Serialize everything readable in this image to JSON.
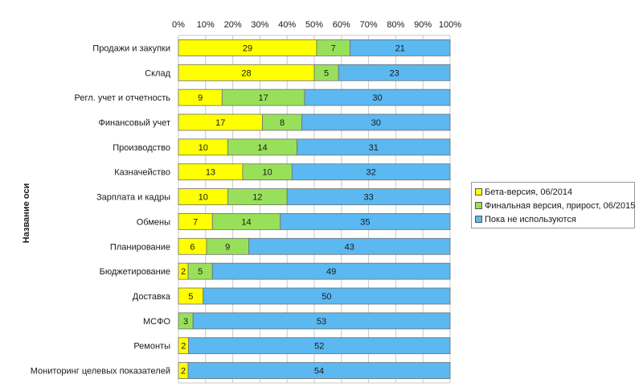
{
  "chart_data": {
    "type": "bar",
    "orientation": "horizontal",
    "stacked": "percent",
    "title": "",
    "ylabel": "Название оси",
    "xlim": [
      0,
      100
    ],
    "x_ticks": [
      "0%",
      "10%",
      "20%",
      "30%",
      "40%",
      "50%",
      "60%",
      "70%",
      "80%",
      "90%",
      "100%"
    ],
    "x_tick_position": "top",
    "grid": true,
    "legend_position": "right",
    "categories": [
      "Продажи и закупки",
      "Склад",
      "Регл. учет и отчетность",
      "Финансовый учет",
      "Производство",
      "Казначейство",
      "Зарплата и кадры",
      "Обмены",
      "Планирование",
      "Бюджетирование",
      "Доставка",
      "МСФО",
      "Ремонты",
      "Мониторинг целевых показателей"
    ],
    "series": [
      {
        "name": "Бета-версия, 06/2014",
        "color": "#ffff00",
        "values": [
          29,
          28,
          9,
          17,
          10,
          13,
          10,
          7,
          6,
          2,
          5,
          0,
          2,
          2
        ]
      },
      {
        "name": "Финальная версия, прирост, 06/2015",
        "color": "#99e05a",
        "values": [
          7,
          5,
          17,
          8,
          14,
          10,
          12,
          14,
          9,
          5,
          0,
          3,
          0,
          0
        ]
      },
      {
        "name": "Пока не используются",
        "color": "#5bb8f0",
        "values": [
          21,
          23,
          30,
          30,
          31,
          32,
          33,
          35,
          43,
          49,
          50,
          53,
          52,
          54
        ]
      }
    ]
  }
}
